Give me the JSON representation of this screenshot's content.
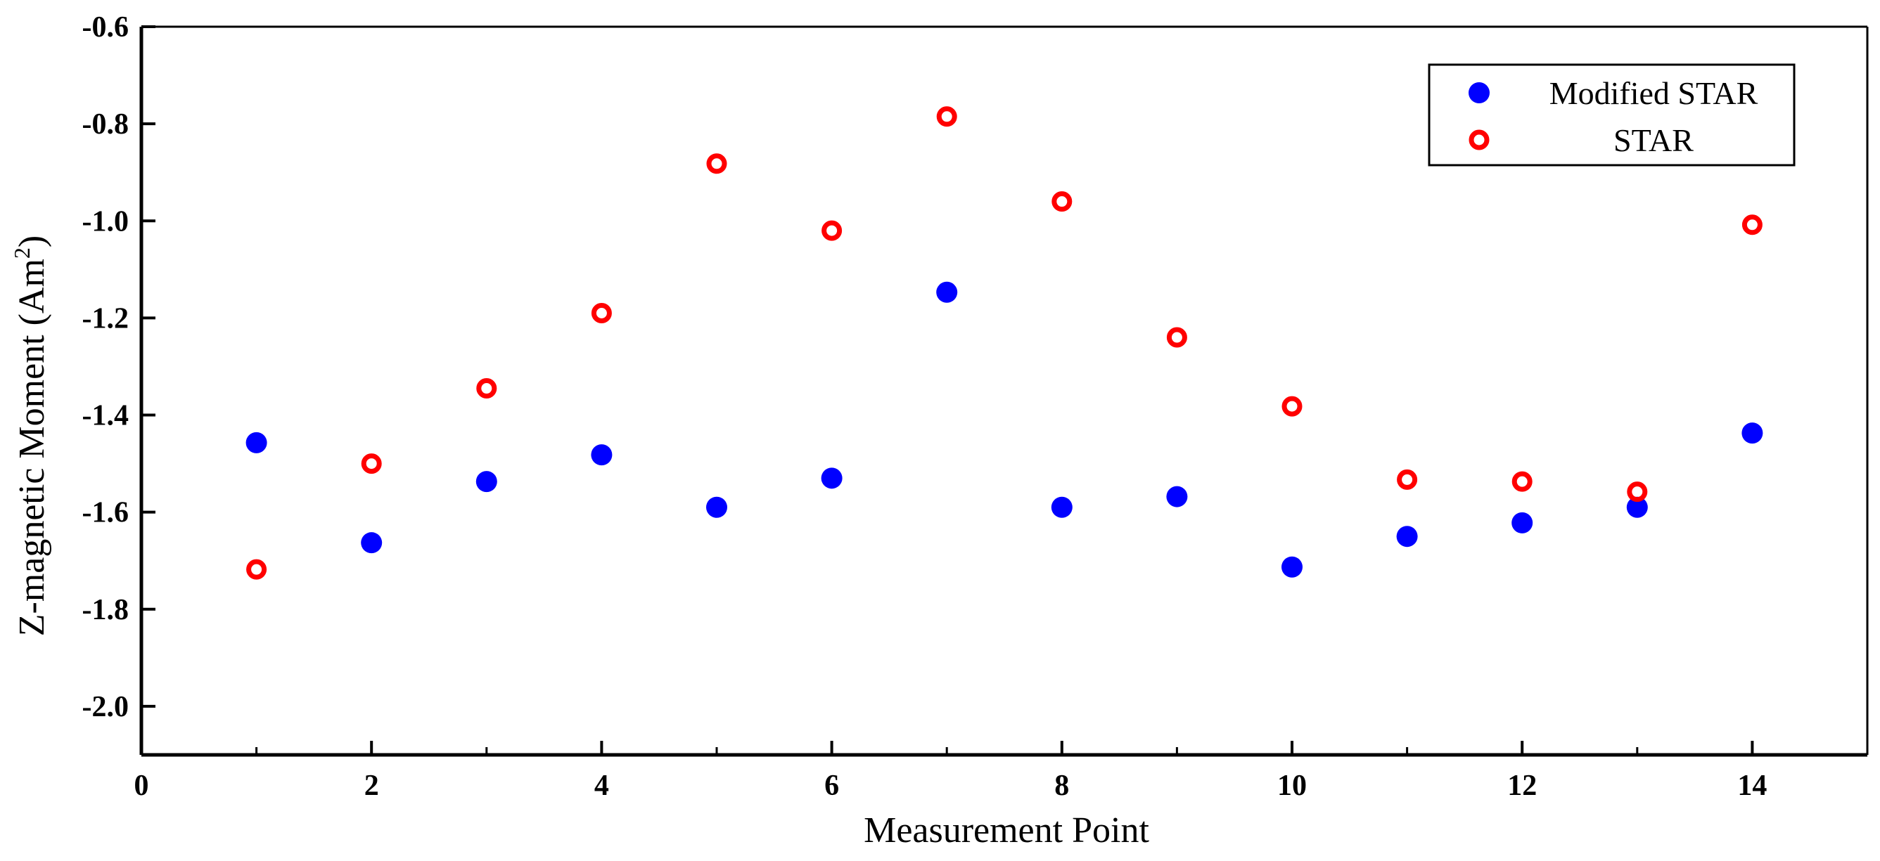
{
  "chart_data": {
    "type": "scatter",
    "title": "",
    "xlabel": "Measurement Point",
    "ylabel": "Z-magnetic Moment (Am²)",
    "ylabel_parts": {
      "main": "Z-magnetic Moment (Am",
      "superscript": "2",
      "tail": ")"
    },
    "xlim": [
      0,
      15
    ],
    "ylim": [
      -2.1,
      -0.6
    ],
    "x_ticks": [
      0,
      2,
      4,
      6,
      8,
      10,
      12,
      14
    ],
    "x_tick_labels": [
      "0",
      "2",
      "4",
      "6",
      "8",
      "10",
      "12",
      "14"
    ],
    "y_ticks": [
      -2.0,
      -1.8,
      -1.6,
      -1.4,
      -1.2,
      -1.0,
      -0.8,
      -0.6
    ],
    "y_tick_labels": [
      "-2.0",
      "-1.8",
      "-1.6",
      "-1.4",
      "-1.2",
      "-1.0",
      "-0.8",
      "-0.6"
    ],
    "grid": false,
    "legend_position": "top-right",
    "x": [
      1,
      2,
      3,
      4,
      5,
      6,
      7,
      8,
      9,
      10,
      11,
      12,
      13,
      14
    ],
    "series": [
      {
        "name": "Modified STAR",
        "marker": "filled-circle",
        "color": "#0000ff",
        "values": [
          -1.457,
          -1.663,
          -1.537,
          -1.482,
          -1.59,
          -1.53,
          -1.147,
          -1.59,
          -1.568,
          -1.713,
          -1.65,
          -1.622,
          -1.59,
          -1.437
        ]
      },
      {
        "name": "STAR",
        "marker": "open-circle",
        "color": "#ff0000",
        "values": [
          -1.718,
          -1.5,
          -1.345,
          -1.19,
          -0.882,
          -1.02,
          -0.785,
          -0.96,
          -1.24,
          -1.382,
          -1.533,
          -1.537,
          -1.558,
          -1.008
        ]
      }
    ]
  }
}
